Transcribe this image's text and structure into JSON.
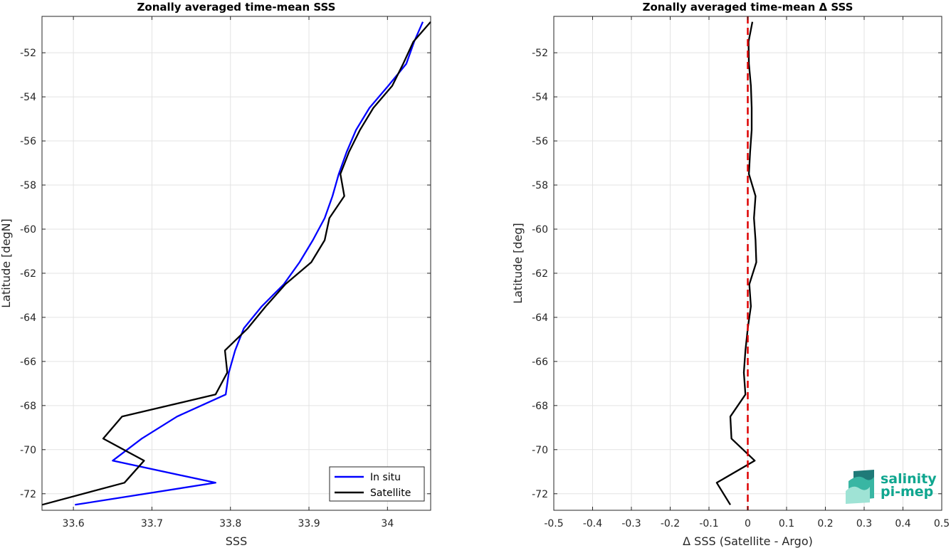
{
  "chart_data": [
    {
      "type": "line",
      "title": "Zonally averaged time-mean SSS",
      "xlabel": "SSS",
      "ylabel": "Latitude [degN]",
      "xlim": [
        33.56,
        34.055
      ],
      "ylim": [
        -72.75,
        -50.35
      ],
      "xticks": [
        33.6,
        33.7,
        33.8,
        33.9,
        34.0
      ],
      "xtick_labels": [
        "33.6",
        "33.7",
        "33.8",
        "33.9",
        "34"
      ],
      "yticks": [
        -72,
        -70,
        -68,
        -66,
        -64,
        -62,
        -60,
        -58,
        -56,
        -54,
        -52
      ],
      "ytick_labels": [
        "-72",
        "-70",
        "-68",
        "-66",
        "-64",
        "-62",
        "-60",
        "-58",
        "-56",
        "-54",
        "-52"
      ],
      "grid": true,
      "legend": "bottom-right",
      "series": [
        {
          "name": "In situ",
          "color": "#0000ff",
          "points": [
            [
              33.602,
              -72.5
            ],
            [
              33.781,
              -71.5
            ],
            [
              33.65,
              -70.5
            ],
            [
              33.687,
              -69.5
            ],
            [
              33.732,
              -68.5
            ],
            [
              33.794,
              -67.5
            ],
            [
              33.798,
              -66.5
            ],
            [
              33.806,
              -65.5
            ],
            [
              33.817,
              -64.5
            ],
            [
              33.84,
              -63.5
            ],
            [
              33.868,
              -62.5
            ],
            [
              33.888,
              -61.5
            ],
            [
              33.905,
              -60.5
            ],
            [
              33.92,
              -59.5
            ],
            [
              33.93,
              -58.5
            ],
            [
              33.938,
              -57.5
            ],
            [
              33.948,
              -56.5
            ],
            [
              33.96,
              -55.5
            ],
            [
              33.977,
              -54.5
            ],
            [
              34.001,
              -53.5
            ],
            [
              34.024,
              -52.5
            ],
            [
              34.034,
              -51.5
            ],
            [
              34.045,
              -50.6
            ]
          ]
        },
        {
          "name": "Satellite",
          "color": "#000000",
          "points": [
            [
              33.56,
              -72.5
            ],
            [
              33.665,
              -71.5
            ],
            [
              33.69,
              -70.5
            ],
            [
              33.638,
              -69.5
            ],
            [
              33.662,
              -68.5
            ],
            [
              33.781,
              -67.5
            ],
            [
              33.796,
              -66.5
            ],
            [
              33.793,
              -65.5
            ],
            [
              33.822,
              -64.5
            ],
            [
              33.845,
              -63.5
            ],
            [
              33.87,
              -62.5
            ],
            [
              33.903,
              -61.5
            ],
            [
              33.92,
              -60.5
            ],
            [
              33.926,
              -59.5
            ],
            [
              33.945,
              -58.5
            ],
            [
              33.94,
              -57.5
            ],
            [
              33.951,
              -56.5
            ],
            [
              33.965,
              -55.5
            ],
            [
              33.982,
              -54.5
            ],
            [
              34.006,
              -53.5
            ],
            [
              34.02,
              -52.5
            ],
            [
              34.033,
              -51.5
            ],
            [
              34.055,
              -50.6
            ]
          ]
        }
      ]
    },
    {
      "type": "line",
      "title": "Zonally averaged time-mean Δ SSS",
      "xlabel": "Δ SSS (Satellite - Argo)",
      "ylabel": "Latitude [deg]",
      "xlim": [
        -0.5,
        0.5
      ],
      "ylim": [
        -72.75,
        -50.35
      ],
      "xticks": [
        -0.5,
        -0.4,
        -0.3,
        -0.2,
        -0.1,
        0,
        0.1,
        0.2,
        0.3,
        0.4,
        0.5
      ],
      "xtick_labels": [
        "-0.5",
        "-0.4",
        "-0.3",
        "-0.2",
        "-0.1",
        "0",
        "0.1",
        "0.2",
        "0.3",
        "0.4",
        "0.5"
      ],
      "yticks": [
        -72,
        -70,
        -68,
        -66,
        -64,
        -62,
        -60,
        -58,
        -56,
        -54,
        -52
      ],
      "ytick_labels": [
        "-72",
        "-70",
        "-68",
        "-66",
        "-64",
        "-62",
        "-60",
        "-58",
        "-56",
        "-54",
        "-52"
      ],
      "grid": true,
      "reference_line": {
        "x": 0,
        "color": "#dd0000",
        "style": "dashed"
      },
      "series": [
        {
          "color": "#000000",
          "points": [
            [
              -0.045,
              -72.5
            ],
            [
              -0.08,
              -71.5
            ],
            [
              0.018,
              -70.5
            ],
            [
              -0.042,
              -69.5
            ],
            [
              -0.045,
              -68.5
            ],
            [
              -0.006,
              -67.5
            ],
            [
              -0.01,
              -66.5
            ],
            [
              -0.006,
              -65.5
            ],
            [
              0.0,
              -64.5
            ],
            [
              0.008,
              -63.5
            ],
            [
              0.004,
              -62.5
            ],
            [
              0.022,
              -61.5
            ],
            [
              0.02,
              -60.5
            ],
            [
              0.016,
              -59.5
            ],
            [
              0.02,
              -58.5
            ],
            [
              0.003,
              -57.5
            ],
            [
              0.006,
              -56.5
            ],
            [
              0.01,
              -55.5
            ],
            [
              0.01,
              -54.5
            ],
            [
              0.008,
              -53.5
            ],
            [
              0.003,
              -52.5
            ],
            [
              0.002,
              -51.5
            ],
            [
              0.012,
              -50.6
            ]
          ]
        }
      ]
    }
  ],
  "logo": {
    "line1": "salinity",
    "line2": "pi-mep",
    "color_text": "#0fa68f",
    "color_dark": "#1f7a78",
    "color_mid": "#39b6a3",
    "color_light": "#9fe3d5"
  }
}
